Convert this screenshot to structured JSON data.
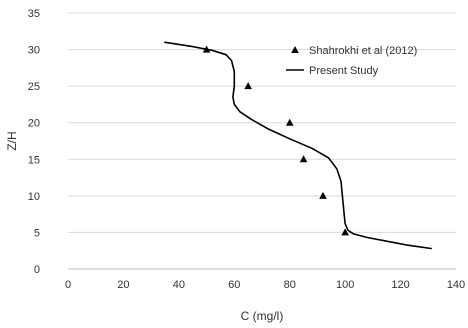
{
  "chart_data": {
    "type": "scatter",
    "xlabel": "C (mg/l)",
    "ylabel": "Z/H",
    "xlim": [
      0,
      140
    ],
    "ylim": [
      0,
      35
    ],
    "xticks": [
      0,
      20,
      40,
      60,
      80,
      100,
      120,
      140
    ],
    "yticks": [
      0,
      5,
      10,
      15,
      20,
      25,
      30,
      35
    ],
    "grid": {
      "horizontal": true,
      "vertical": false
    },
    "legend_position": "top-right",
    "series": [
      {
        "name": "Shahrokhi et al (2012)",
        "kind": "scatter",
        "marker": "triangle",
        "color": "#000000",
        "points": [
          [
            50,
            30
          ],
          [
            65,
            25
          ],
          [
            80,
            20
          ],
          [
            85,
            15
          ],
          [
            92,
            10
          ],
          [
            100,
            5
          ]
        ]
      },
      {
        "name": "Present Study",
        "kind": "line",
        "color": "#000000",
        "points": [
          [
            35,
            31
          ],
          [
            45,
            30.4
          ],
          [
            52,
            29.9
          ],
          [
            57,
            29.3
          ],
          [
            59,
            28.5
          ],
          [
            60,
            27
          ],
          [
            60,
            25
          ],
          [
            59.5,
            23.5
          ],
          [
            60,
            22.5
          ],
          [
            62,
            21.5
          ],
          [
            66,
            20.5
          ],
          [
            72,
            19.2
          ],
          [
            80,
            17.8
          ],
          [
            88,
            16.5
          ],
          [
            94,
            15.2
          ],
          [
            97,
            13.7
          ],
          [
            98.5,
            12
          ],
          [
            99,
            10
          ],
          [
            99.5,
            8
          ],
          [
            100,
            6.2
          ],
          [
            101,
            5.3
          ],
          [
            103,
            4.8
          ],
          [
            108,
            4.3
          ],
          [
            115,
            3.8
          ],
          [
            122,
            3.3
          ],
          [
            131,
            2.8
          ]
        ]
      }
    ]
  }
}
